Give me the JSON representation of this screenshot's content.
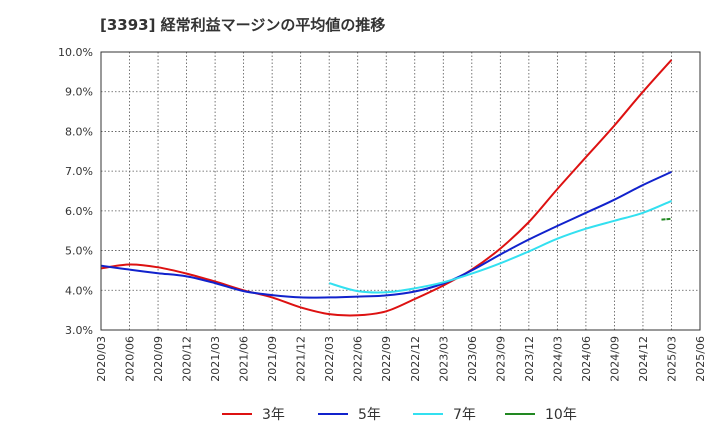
{
  "chart_data": {
    "type": "line",
    "title": "[3393]  経常利益マージンの平均値の推移",
    "xlabel": "",
    "ylabel": "",
    "x": [
      "2020/03",
      "2020/06",
      "2020/09",
      "2020/12",
      "2021/03",
      "2021/06",
      "2021/09",
      "2021/12",
      "2022/03",
      "2022/06",
      "2022/09",
      "2022/12",
      "2023/03",
      "2023/06",
      "2023/09",
      "2023/12",
      "2024/03",
      "2024/06",
      "2024/09",
      "2024/12",
      "2025/03",
      "2025/06"
    ],
    "y_ticks": [
      "3.0%",
      "4.0%",
      "5.0%",
      "6.0%",
      "7.0%",
      "8.0%",
      "9.0%",
      "10.0%"
    ],
    "ylim": [
      3.0,
      10.0
    ],
    "grid": true,
    "legend_position": "bottom",
    "series": [
      {
        "name": "3年",
        "color": "#dd1111",
        "values": [
          4.55,
          4.65,
          4.58,
          4.42,
          4.22,
          4.0,
          3.82,
          3.57,
          3.4,
          3.37,
          3.47,
          3.78,
          4.12,
          4.52,
          5.05,
          5.72,
          6.55,
          7.35,
          8.15,
          9.0,
          9.8,
          null
        ]
      },
      {
        "name": "5年",
        "color": "#1122cc",
        "values": [
          4.62,
          4.52,
          4.43,
          4.35,
          4.18,
          3.98,
          3.88,
          3.82,
          3.82,
          3.84,
          3.87,
          3.97,
          4.17,
          4.5,
          4.9,
          5.28,
          5.62,
          5.95,
          6.28,
          6.65,
          6.98,
          null
        ]
      },
      {
        "name": "7年",
        "color": "#33e0f0",
        "values": [
          null,
          null,
          null,
          null,
          null,
          null,
          null,
          null,
          4.18,
          3.98,
          3.95,
          4.05,
          4.2,
          4.42,
          4.68,
          4.98,
          5.3,
          5.55,
          5.75,
          5.95,
          6.25,
          null
        ]
      },
      {
        "name": "10年",
        "color": "#228822",
        "values": [
          null,
          null,
          null,
          null,
          null,
          null,
          null,
          null,
          null,
          null,
          null,
          null,
          null,
          null,
          null,
          null,
          null,
          null,
          null,
          null,
          5.8,
          null
        ]
      }
    ]
  }
}
